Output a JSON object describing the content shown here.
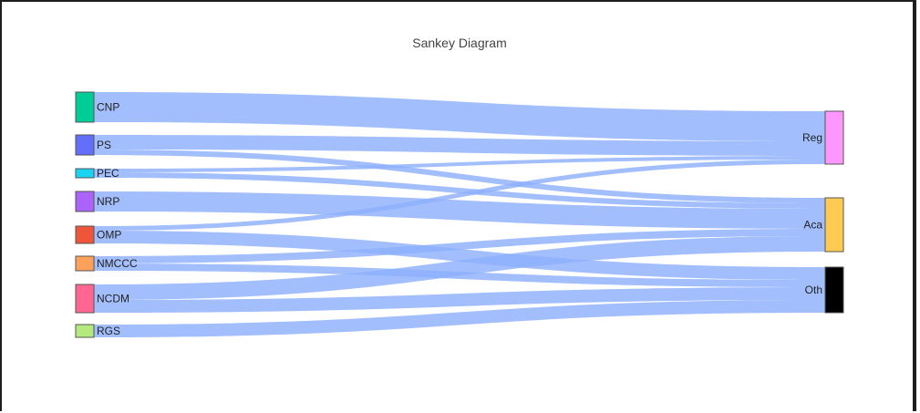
{
  "chart_data": {
    "type": "sankey",
    "title": "Sankey Diagram",
    "sources": [
      {
        "name": "CNP",
        "color": "#00cc96"
      },
      {
        "name": "PS",
        "color": "#636efa"
      },
      {
        "name": "PEC",
        "color": "#19d3f3"
      },
      {
        "name": "NRP",
        "color": "#ab63fa"
      },
      {
        "name": "OMP",
        "color": "#ef553b"
      },
      {
        "name": "NMCCC",
        "color": "#ffa15a"
      },
      {
        "name": "NCDM",
        "color": "#ff6692"
      },
      {
        "name": "RGS",
        "color": "#b6e880"
      }
    ],
    "targets": [
      {
        "name": "Reg",
        "color": "#ff97ff"
      },
      {
        "name": "Aca",
        "color": "#fecb52"
      },
      {
        "name": "Oth",
        "color": "#000000"
      }
    ],
    "links": [
      {
        "source": "CNP",
        "target": "Reg",
        "value": 33
      },
      {
        "source": "PS",
        "target": "Reg",
        "value": 16
      },
      {
        "source": "PS",
        "target": "Aca",
        "value": 6
      },
      {
        "source": "PEC",
        "target": "Reg",
        "value": 4
      },
      {
        "source": "PEC",
        "target": "Aca",
        "value": 6
      },
      {
        "source": "NRP",
        "target": "Aca",
        "value": 22
      },
      {
        "source": "OMP",
        "target": "Reg",
        "value": 5
      },
      {
        "source": "OMP",
        "target": "Oth",
        "value": 14
      },
      {
        "source": "NMCCC",
        "target": "Aca",
        "value": 8
      },
      {
        "source": "NMCCC",
        "target": "Oth",
        "value": 8
      },
      {
        "source": "NCDM",
        "target": "Aca",
        "value": 17
      },
      {
        "source": "NCDM",
        "target": "Oth",
        "value": 14
      },
      {
        "source": "RGS",
        "target": "Oth",
        "value": 14
      }
    ]
  }
}
